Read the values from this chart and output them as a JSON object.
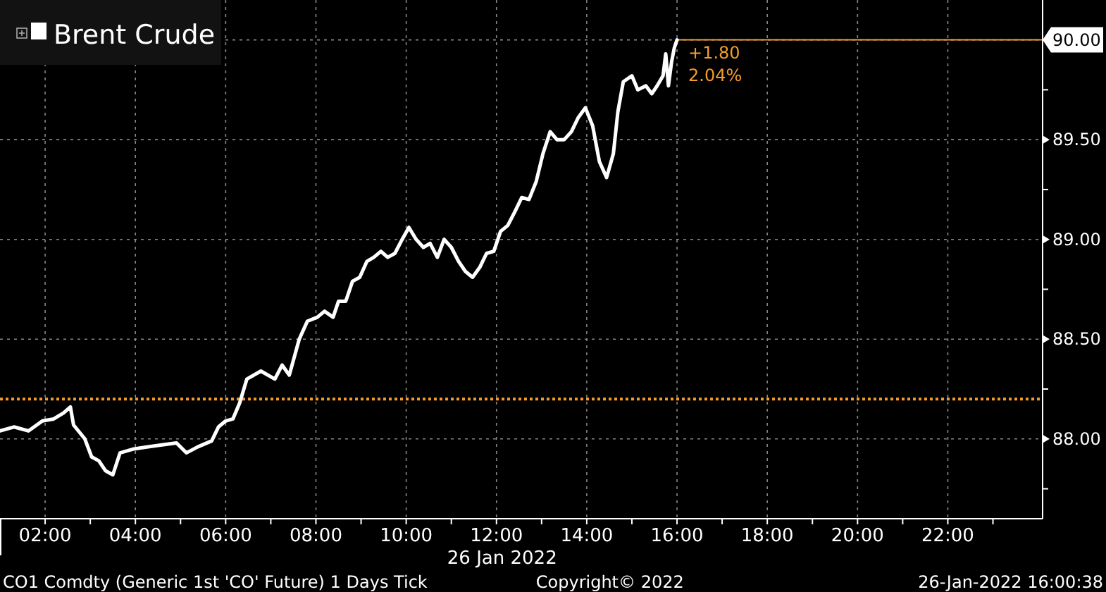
{
  "chart_data": {
    "type": "line",
    "x": [
      1.0,
      1.31,
      1.63,
      1.94,
      2.19,
      2.41,
      2.56,
      2.63,
      2.88,
      3.03,
      3.19,
      3.34,
      3.5,
      3.66,
      3.97,
      4.28,
      4.59,
      4.91,
      5.13,
      5.38,
      5.69,
      5.84,
      6.0,
      6.16,
      6.31,
      6.47,
      6.78,
      7.09,
      7.25,
      7.41,
      7.63,
      7.81,
      8.03,
      8.19,
      8.38,
      8.5,
      8.66,
      8.81,
      8.97,
      9.13,
      9.28,
      9.44,
      9.59,
      9.75,
      9.91,
      10.06,
      10.22,
      10.38,
      10.53,
      10.69,
      10.84,
      11.0,
      11.16,
      11.31,
      11.47,
      11.63,
      11.78,
      11.94,
      12.09,
      12.25,
      12.41,
      12.56,
      12.72,
      12.88,
      13.03,
      13.19,
      13.34,
      13.5,
      13.66,
      13.81,
      13.97,
      14.13,
      14.28,
      14.44,
      14.59,
      14.69,
      14.81,
      15.0,
      15.13,
      15.31,
      15.44,
      15.56,
      15.69,
      15.75,
      15.81,
      15.88,
      15.94,
      16.0
    ],
    "series": [
      {
        "name": "Brent Crude",
        "color": "#ffffff",
        "values": [
          88.04,
          88.06,
          88.04,
          88.09,
          88.1,
          88.13,
          88.16,
          88.07,
          88.0,
          87.91,
          87.89,
          87.84,
          87.82,
          87.93,
          87.95,
          87.96,
          87.97,
          87.98,
          87.93,
          87.96,
          87.99,
          88.06,
          88.09,
          88.1,
          88.18,
          88.3,
          88.34,
          88.3,
          88.37,
          88.32,
          88.5,
          88.59,
          88.61,
          88.64,
          88.61,
          88.69,
          88.69,
          88.79,
          88.81,
          88.89,
          88.91,
          88.94,
          88.91,
          88.93,
          89.0,
          89.06,
          89.0,
          88.96,
          88.98,
          88.91,
          89.0,
          88.96,
          88.89,
          88.84,
          88.81,
          88.86,
          88.93,
          88.94,
          89.04,
          89.07,
          89.14,
          89.21,
          89.2,
          89.29,
          89.43,
          89.54,
          89.5,
          89.5,
          89.54,
          89.61,
          89.66,
          89.57,
          89.39,
          89.31,
          89.43,
          89.64,
          89.79,
          89.82,
          89.75,
          89.77,
          89.73,
          89.77,
          89.82,
          89.93,
          89.77,
          89.89,
          89.96,
          90.0
        ]
      }
    ],
    "xlim": [
      1,
      24.1
    ],
    "xticks": [
      {
        "value": 2,
        "label": "02:00"
      },
      {
        "value": 3,
        "label": null
      },
      {
        "value": 4,
        "label": "04:00"
      },
      {
        "value": 5,
        "label": null
      },
      {
        "value": 6,
        "label": "06:00"
      },
      {
        "value": 7,
        "label": null
      },
      {
        "value": 8,
        "label": "08:00"
      },
      {
        "value": 9,
        "label": null
      },
      {
        "value": 10,
        "label": "10:00"
      },
      {
        "value": 11,
        "label": null
      },
      {
        "value": 12,
        "label": "12:00"
      },
      {
        "value": 13,
        "label": null
      },
      {
        "value": 14,
        "label": "14:00"
      },
      {
        "value": 15,
        "label": null
      },
      {
        "value": 16,
        "label": "16:00"
      },
      {
        "value": 17,
        "label": null
      },
      {
        "value": 18,
        "label": "18:00"
      },
      {
        "value": 19,
        "label": null
      },
      {
        "value": 20,
        "label": "20:00"
      },
      {
        "value": 21,
        "label": null
      },
      {
        "value": 22,
        "label": "22:00"
      },
      {
        "value": 23,
        "label": null
      }
    ],
    "ylim": [
      87.6,
      90.2
    ],
    "yticks": [
      {
        "value": 87.75,
        "label": null
      },
      {
        "value": 88,
        "label": "88.00"
      },
      {
        "value": 88.25,
        "label": null
      },
      {
        "value": 88.5,
        "label": "88.50"
      },
      {
        "value": 88.75,
        "label": null
      },
      {
        "value": 89,
        "label": "89.00"
      },
      {
        "value": 89.25,
        "label": null
      },
      {
        "value": 89.5,
        "label": "89.50"
      },
      {
        "value": 89.75,
        "label": null
      },
      {
        "value": 90,
        "label": null
      }
    ],
    "ref_lines": [
      {
        "axis": "y",
        "value": 88.2,
        "color": "#f39c2b",
        "line_style": "dotted"
      },
      {
        "axis": "y",
        "value": 90,
        "label": "90.00",
        "color": "#f39c2b",
        "line_style": "solid"
      }
    ],
    "annotations": [
      {
        "text": "+1.80",
        "x": 16,
        "y": 90
      },
      {
        "text": "2.04%",
        "x": 16,
        "y": 90
      },
      "26 Jan 2022",
      "CO1 Comdty (Generic 1st 'CO' Future) 1 Days  Tick",
      "Copyright© 2022",
      "26-Jan-2022 16:00:38"
    ],
    "grid": true,
    "legend": "top left",
    "marker": "none",
    "line_style": "solid"
  }
}
